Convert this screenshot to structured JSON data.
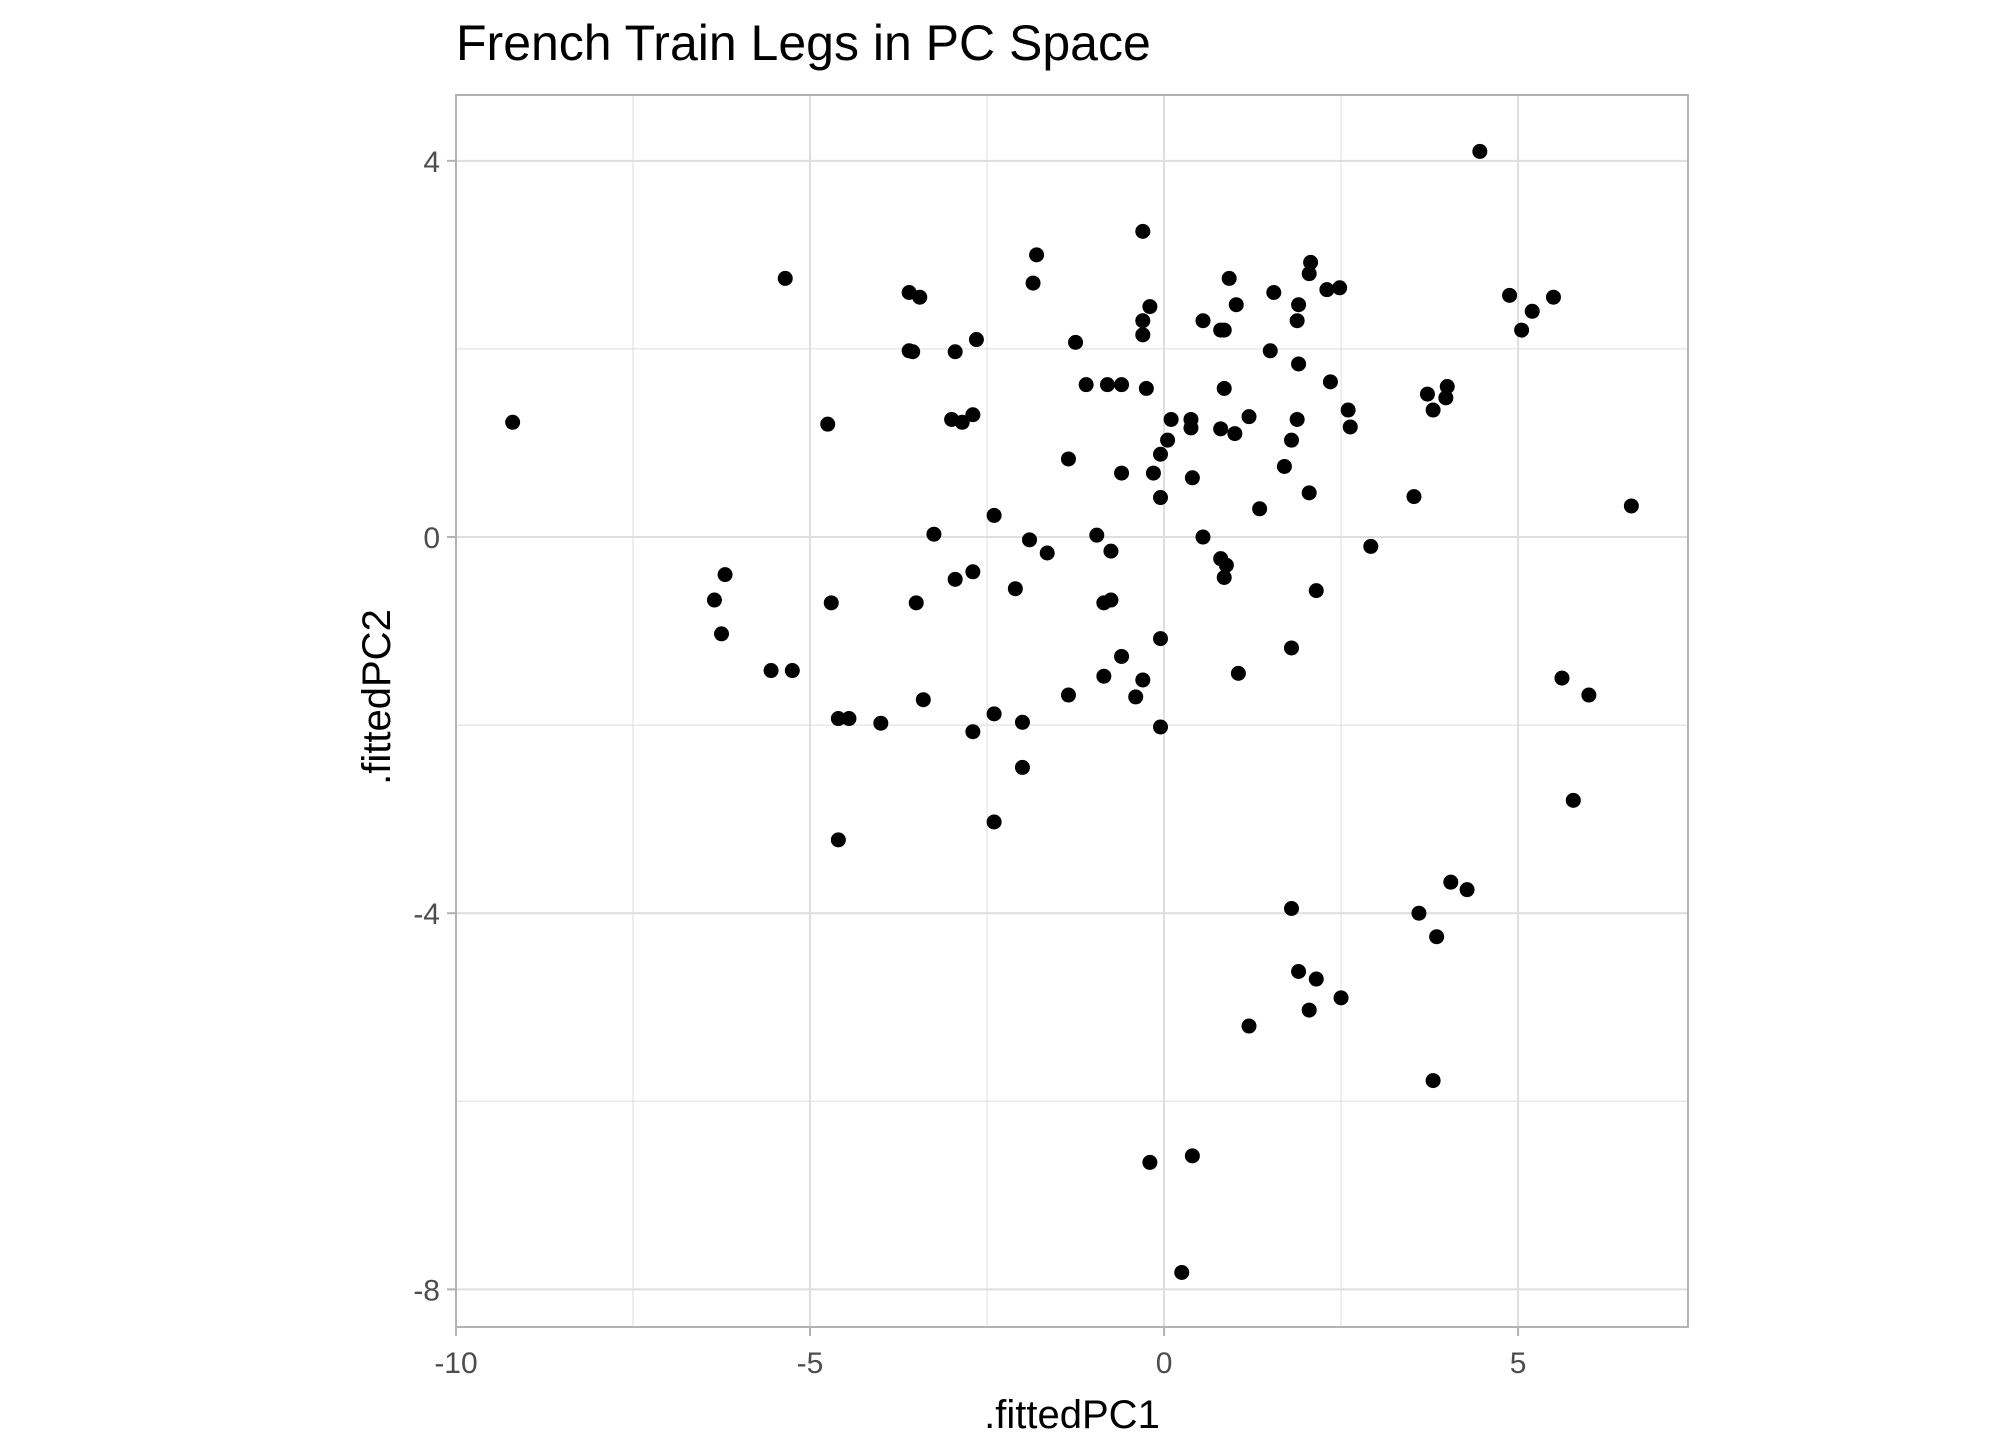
{
  "chart_data": {
    "type": "scatter",
    "title": "French Train Legs in PC Space",
    "xlabel": ".fittedPC1",
    "ylabel": ".fittedPC2",
    "xlim": [
      -10,
      7.4
    ],
    "ylim": [
      -8.4,
      4.7
    ],
    "x_ticks": [
      -10,
      -5,
      0,
      5
    ],
    "y_ticks": [
      4,
      0,
      -4,
      -8
    ],
    "x_tick_labels": [
      "-10",
      "-5",
      "0",
      "5"
    ],
    "y_tick_labels": [
      "4",
      "0",
      "-4",
      "-8"
    ],
    "x_minor": [
      -7.5,
      -2.5,
      2.5
    ],
    "y_minor": [
      2,
      -2,
      -6
    ],
    "grid": true,
    "theme": "light",
    "point_color": "#000000",
    "grid_color": "#dedede",
    "panel_border_color": "#b3b3b3",
    "points": [
      [
        4.46,
        4.1
      ],
      [
        -0.3,
        3.25
      ],
      [
        -1.8,
        3.0
      ],
      [
        -5.35,
        2.75
      ],
      [
        -1.85,
        2.7
      ],
      [
        -3.6,
        2.6
      ],
      [
        -3.45,
        2.55
      ],
      [
        -2.65,
        2.1
      ],
      [
        -3.6,
        1.98
      ],
      [
        -3.55,
        1.97
      ],
      [
        -2.95,
        1.97
      ],
      [
        -1.25,
        2.07
      ],
      [
        -0.2,
        2.45
      ],
      [
        -0.3,
        2.3
      ],
      [
        -0.3,
        2.15
      ],
      [
        0.55,
        2.3
      ],
      [
        0.8,
        2.2
      ],
      [
        0.85,
        2.2
      ],
      [
        0.92,
        2.75
      ],
      [
        1.02,
        2.47
      ],
      [
        1.55,
        2.6
      ],
      [
        2.07,
        2.92
      ],
      [
        2.05,
        2.8
      ],
      [
        2.3,
        2.63
      ],
      [
        2.48,
        2.65
      ],
      [
        1.9,
        2.47
      ],
      [
        1.88,
        2.3
      ],
      [
        1.5,
        1.98
      ],
      [
        1.9,
        1.84
      ],
      [
        4.88,
        2.57
      ],
      [
        5.2,
        2.4
      ],
      [
        5.5,
        2.55
      ],
      [
        5.05,
        2.2
      ],
      [
        -1.1,
        1.62
      ],
      [
        -0.8,
        1.62
      ],
      [
        -0.6,
        1.62
      ],
      [
        -0.25,
        1.58
      ],
      [
        0.85,
        1.58
      ],
      [
        2.35,
        1.65
      ],
      [
        2.6,
        1.35
      ],
      [
        3.72,
        1.52
      ],
      [
        4.0,
        1.6
      ],
      [
        3.98,
        1.48
      ],
      [
        3.8,
        1.35
      ],
      [
        -4.75,
        1.2
      ],
      [
        -3.0,
        1.25
      ],
      [
        -2.85,
        1.22
      ],
      [
        -2.7,
        1.3
      ],
      [
        0.1,
        1.25
      ],
      [
        0.38,
        1.25
      ],
      [
        0.38,
        1.16
      ],
      [
        0.8,
        1.15
      ],
      [
        1.0,
        1.1
      ],
      [
        1.2,
        1.28
      ],
      [
        1.88,
        1.25
      ],
      [
        1.8,
        1.03
      ],
      [
        2.63,
        1.17
      ],
      [
        -9.2,
        1.22
      ],
      [
        0.05,
        1.03
      ],
      [
        -0.05,
        0.88
      ],
      [
        -1.35,
        0.83
      ],
      [
        -0.6,
        0.68
      ],
      [
        -0.15,
        0.68
      ],
      [
        0.4,
        0.63
      ],
      [
        1.7,
        0.75
      ],
      [
        2.05,
        0.47
      ],
      [
        3.53,
        0.43
      ],
      [
        -0.05,
        0.42
      ],
      [
        1.35,
        0.3
      ],
      [
        6.6,
        0.33
      ],
      [
        -2.4,
        0.23
      ],
      [
        -3.25,
        0.03
      ],
      [
        -1.9,
        -0.03
      ],
      [
        -0.95,
        0.02
      ],
      [
        0.55,
        0.0
      ],
      [
        -1.65,
        -0.17
      ],
      [
        -0.75,
        -0.15
      ],
      [
        0.8,
        -0.23
      ],
      [
        0.88,
        -0.3
      ],
      [
        0.85,
        -0.43
      ],
      [
        2.92,
        -0.1
      ],
      [
        -6.2,
        -0.4
      ],
      [
        -2.7,
        -0.37
      ],
      [
        -2.95,
        -0.45
      ],
      [
        -2.1,
        -0.55
      ],
      [
        2.15,
        -0.57
      ],
      [
        -6.35,
        -0.67
      ],
      [
        -4.7,
        -0.7
      ],
      [
        -3.5,
        -0.7
      ],
      [
        -0.85,
        -0.7
      ],
      [
        -0.75,
        -0.67
      ],
      [
        -6.25,
        -1.03
      ],
      [
        -0.05,
        -1.08
      ],
      [
        1.8,
        -1.18
      ],
      [
        -0.6,
        -1.27
      ],
      [
        -5.55,
        -1.42
      ],
      [
        -5.25,
        -1.42
      ],
      [
        -0.85,
        -1.48
      ],
      [
        -0.3,
        -1.52
      ],
      [
        1.05,
        -1.45
      ],
      [
        5.62,
        -1.5
      ],
      [
        6.0,
        -1.68
      ],
      [
        -1.35,
        -1.68
      ],
      [
        -0.4,
        -1.7
      ],
      [
        -3.4,
        -1.73
      ],
      [
        -4.6,
        -1.93
      ],
      [
        -4.45,
        -1.93
      ],
      [
        -4.0,
        -1.98
      ],
      [
        -2.4,
        -1.88
      ],
      [
        -2.0,
        -1.97
      ],
      [
        -2.7,
        -2.07
      ],
      [
        -0.05,
        -2.02
      ],
      [
        -2.0,
        -2.45
      ],
      [
        5.78,
        -2.8
      ],
      [
        -2.4,
        -3.03
      ],
      [
        -4.6,
        -3.22
      ],
      [
        1.8,
        -3.95
      ],
      [
        3.6,
        -4.0
      ],
      [
        3.85,
        -4.25
      ],
      [
        4.05,
        -3.67
      ],
      [
        4.28,
        -3.75
      ],
      [
        1.9,
        -4.62
      ],
      [
        2.15,
        -4.7
      ],
      [
        2.5,
        -4.9
      ],
      [
        2.05,
        -5.03
      ],
      [
        1.2,
        -5.2
      ],
      [
        3.8,
        -5.78
      ],
      [
        0.4,
        -6.58
      ],
      [
        -0.2,
        -6.65
      ],
      [
        0.25,
        -7.82
      ]
    ]
  }
}
